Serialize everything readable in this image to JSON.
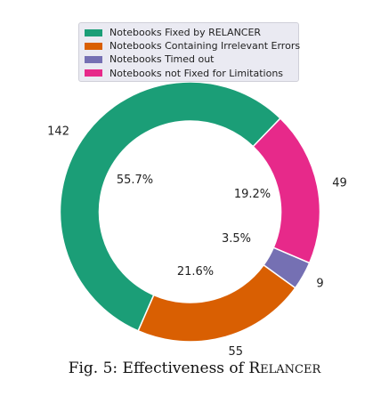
{
  "chart_data": {
    "type": "pie",
    "donut": true,
    "series": [
      {
        "name": "Notebooks Fixed by RELANCER",
        "value": 142,
        "percent_label": "55.7%",
        "color": "#1b9e77"
      },
      {
        "name": "Notebooks Containing Irrelevant Errors",
        "value": 55,
        "percent_label": "21.6%",
        "color": "#d95f02"
      },
      {
        "name": "Notebooks Timed out",
        "value": 9,
        "percent_label": "3.5%",
        "color": "#7570b3"
      },
      {
        "name": "Notebooks not Fixed for Limitations",
        "value": 49,
        "percent_label": "19.2%",
        "color": "#e7298a"
      }
    ],
    "legend_position": "top",
    "caption": {
      "prefix": "Fig. 5: Effectiveness of ",
      "name_initial": "R",
      "name_rest": "ELANCER"
    }
  }
}
